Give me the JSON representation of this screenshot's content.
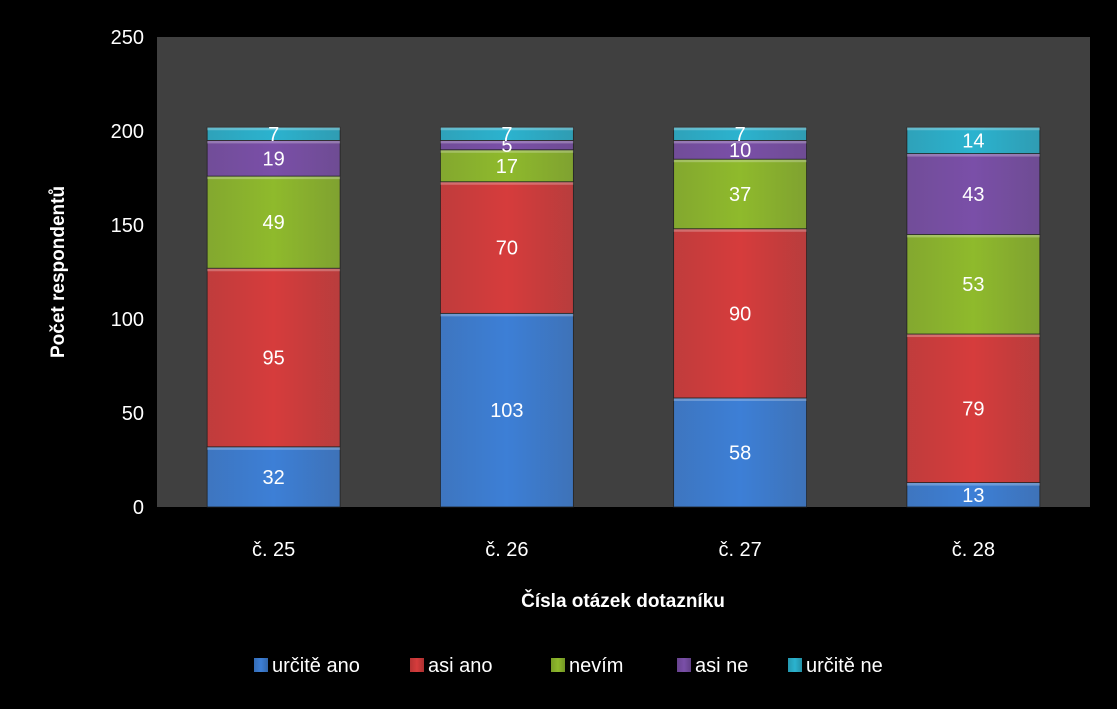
{
  "chart_data": {
    "type": "bar",
    "stacked": true,
    "categories": [
      "č. 25",
      "č. 26",
      "č. 27",
      "č. 28"
    ],
    "series": [
      {
        "name": "určitě ano",
        "values": [
          32,
          103,
          58,
          13
        ],
        "color": "#3d7fd6"
      },
      {
        "name": "asi ano",
        "values": [
          95,
          70,
          90,
          79
        ],
        "color": "#d63c3c"
      },
      {
        "name": "nevím",
        "values": [
          49,
          17,
          37,
          53
        ],
        "color": "#8fba2c"
      },
      {
        "name": "asi ne",
        "values": [
          19,
          5,
          10,
          43
        ],
        "color": "#7a4fa8"
      },
      {
        "name": "určitě ne",
        "values": [
          7,
          7,
          7,
          14
        ],
        "color": "#2bb3cf"
      }
    ],
    "xlabel": "Čísla otázek dotazníku",
    "ylabel": "Počet respondentů",
    "ylim": [
      0,
      250
    ],
    "yticks": [
      0,
      50,
      100,
      150,
      200,
      250
    ],
    "grid": false,
    "legend_position": "bottom",
    "plot_background": "#404040",
    "page_background": "#000000"
  }
}
